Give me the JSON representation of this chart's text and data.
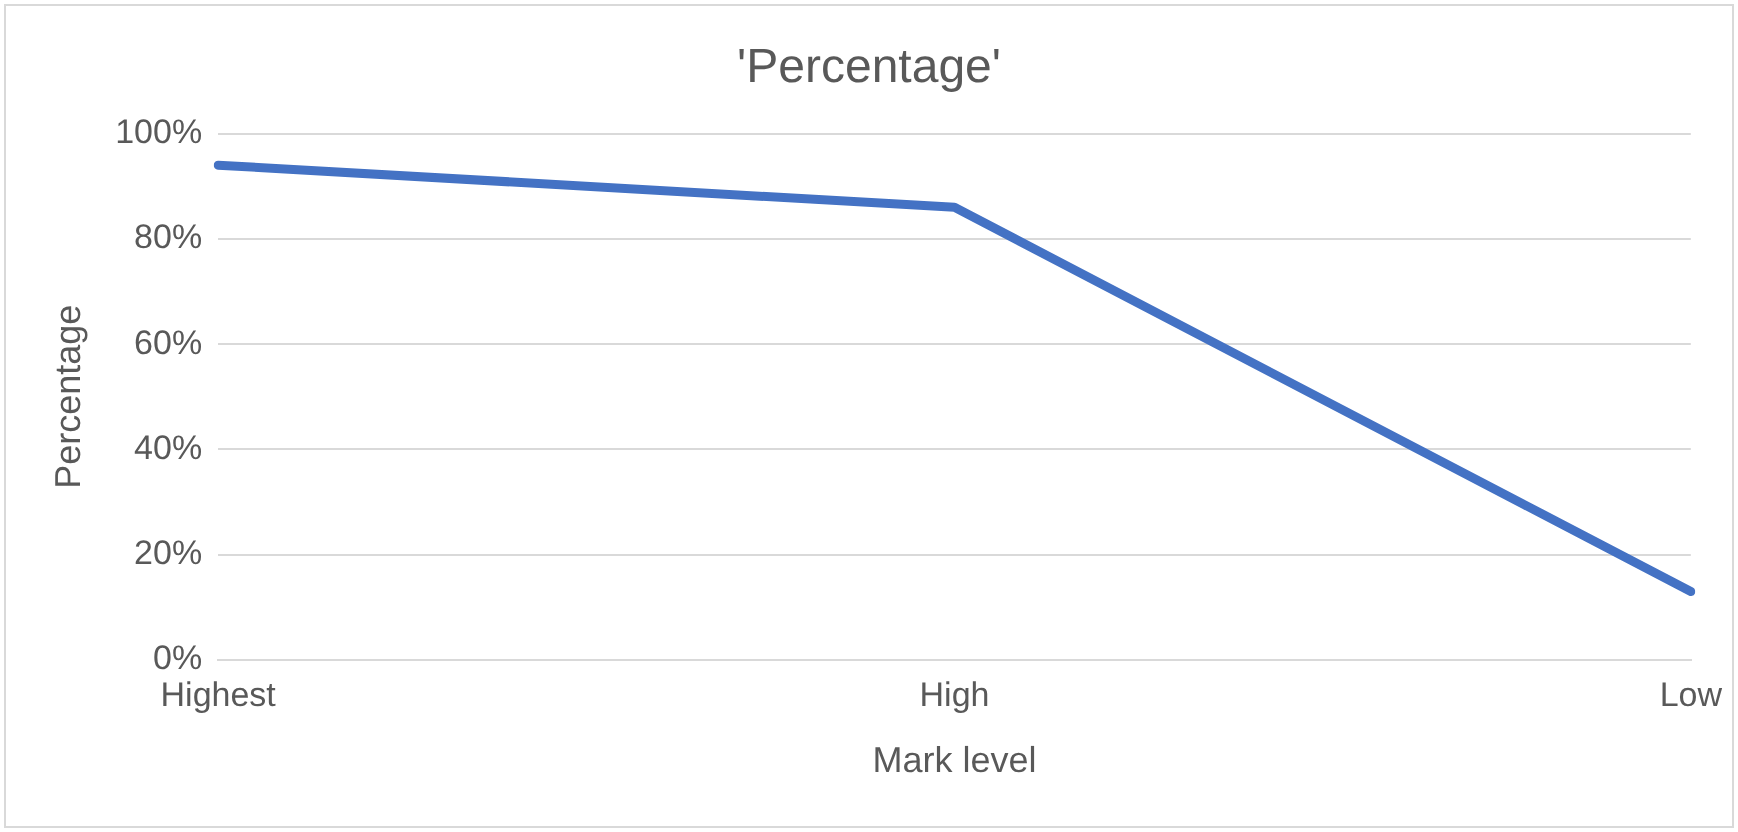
{
  "chart_data": {
    "type": "line",
    "title": "'Percentage'",
    "xlabel": "Mark level",
    "ylabel": "Percentage",
    "categories": [
      "Highest",
      "High",
      "Low"
    ],
    "series": [
      {
        "color": "#4472c4",
        "values": [
          94,
          86,
          13
        ]
      }
    ],
    "ylim": [
      0,
      100
    ],
    "yticks": [
      {
        "value": 0,
        "label": "0%"
      },
      {
        "value": 20,
        "label": "20%"
      },
      {
        "value": 40,
        "label": "40%"
      },
      {
        "value": 60,
        "label": "60%"
      },
      {
        "value": 80,
        "label": "80%"
      },
      {
        "value": 100,
        "label": "100%"
      }
    ],
    "grid": "y",
    "legend": false,
    "marker": "none",
    "line_style": "solid"
  }
}
